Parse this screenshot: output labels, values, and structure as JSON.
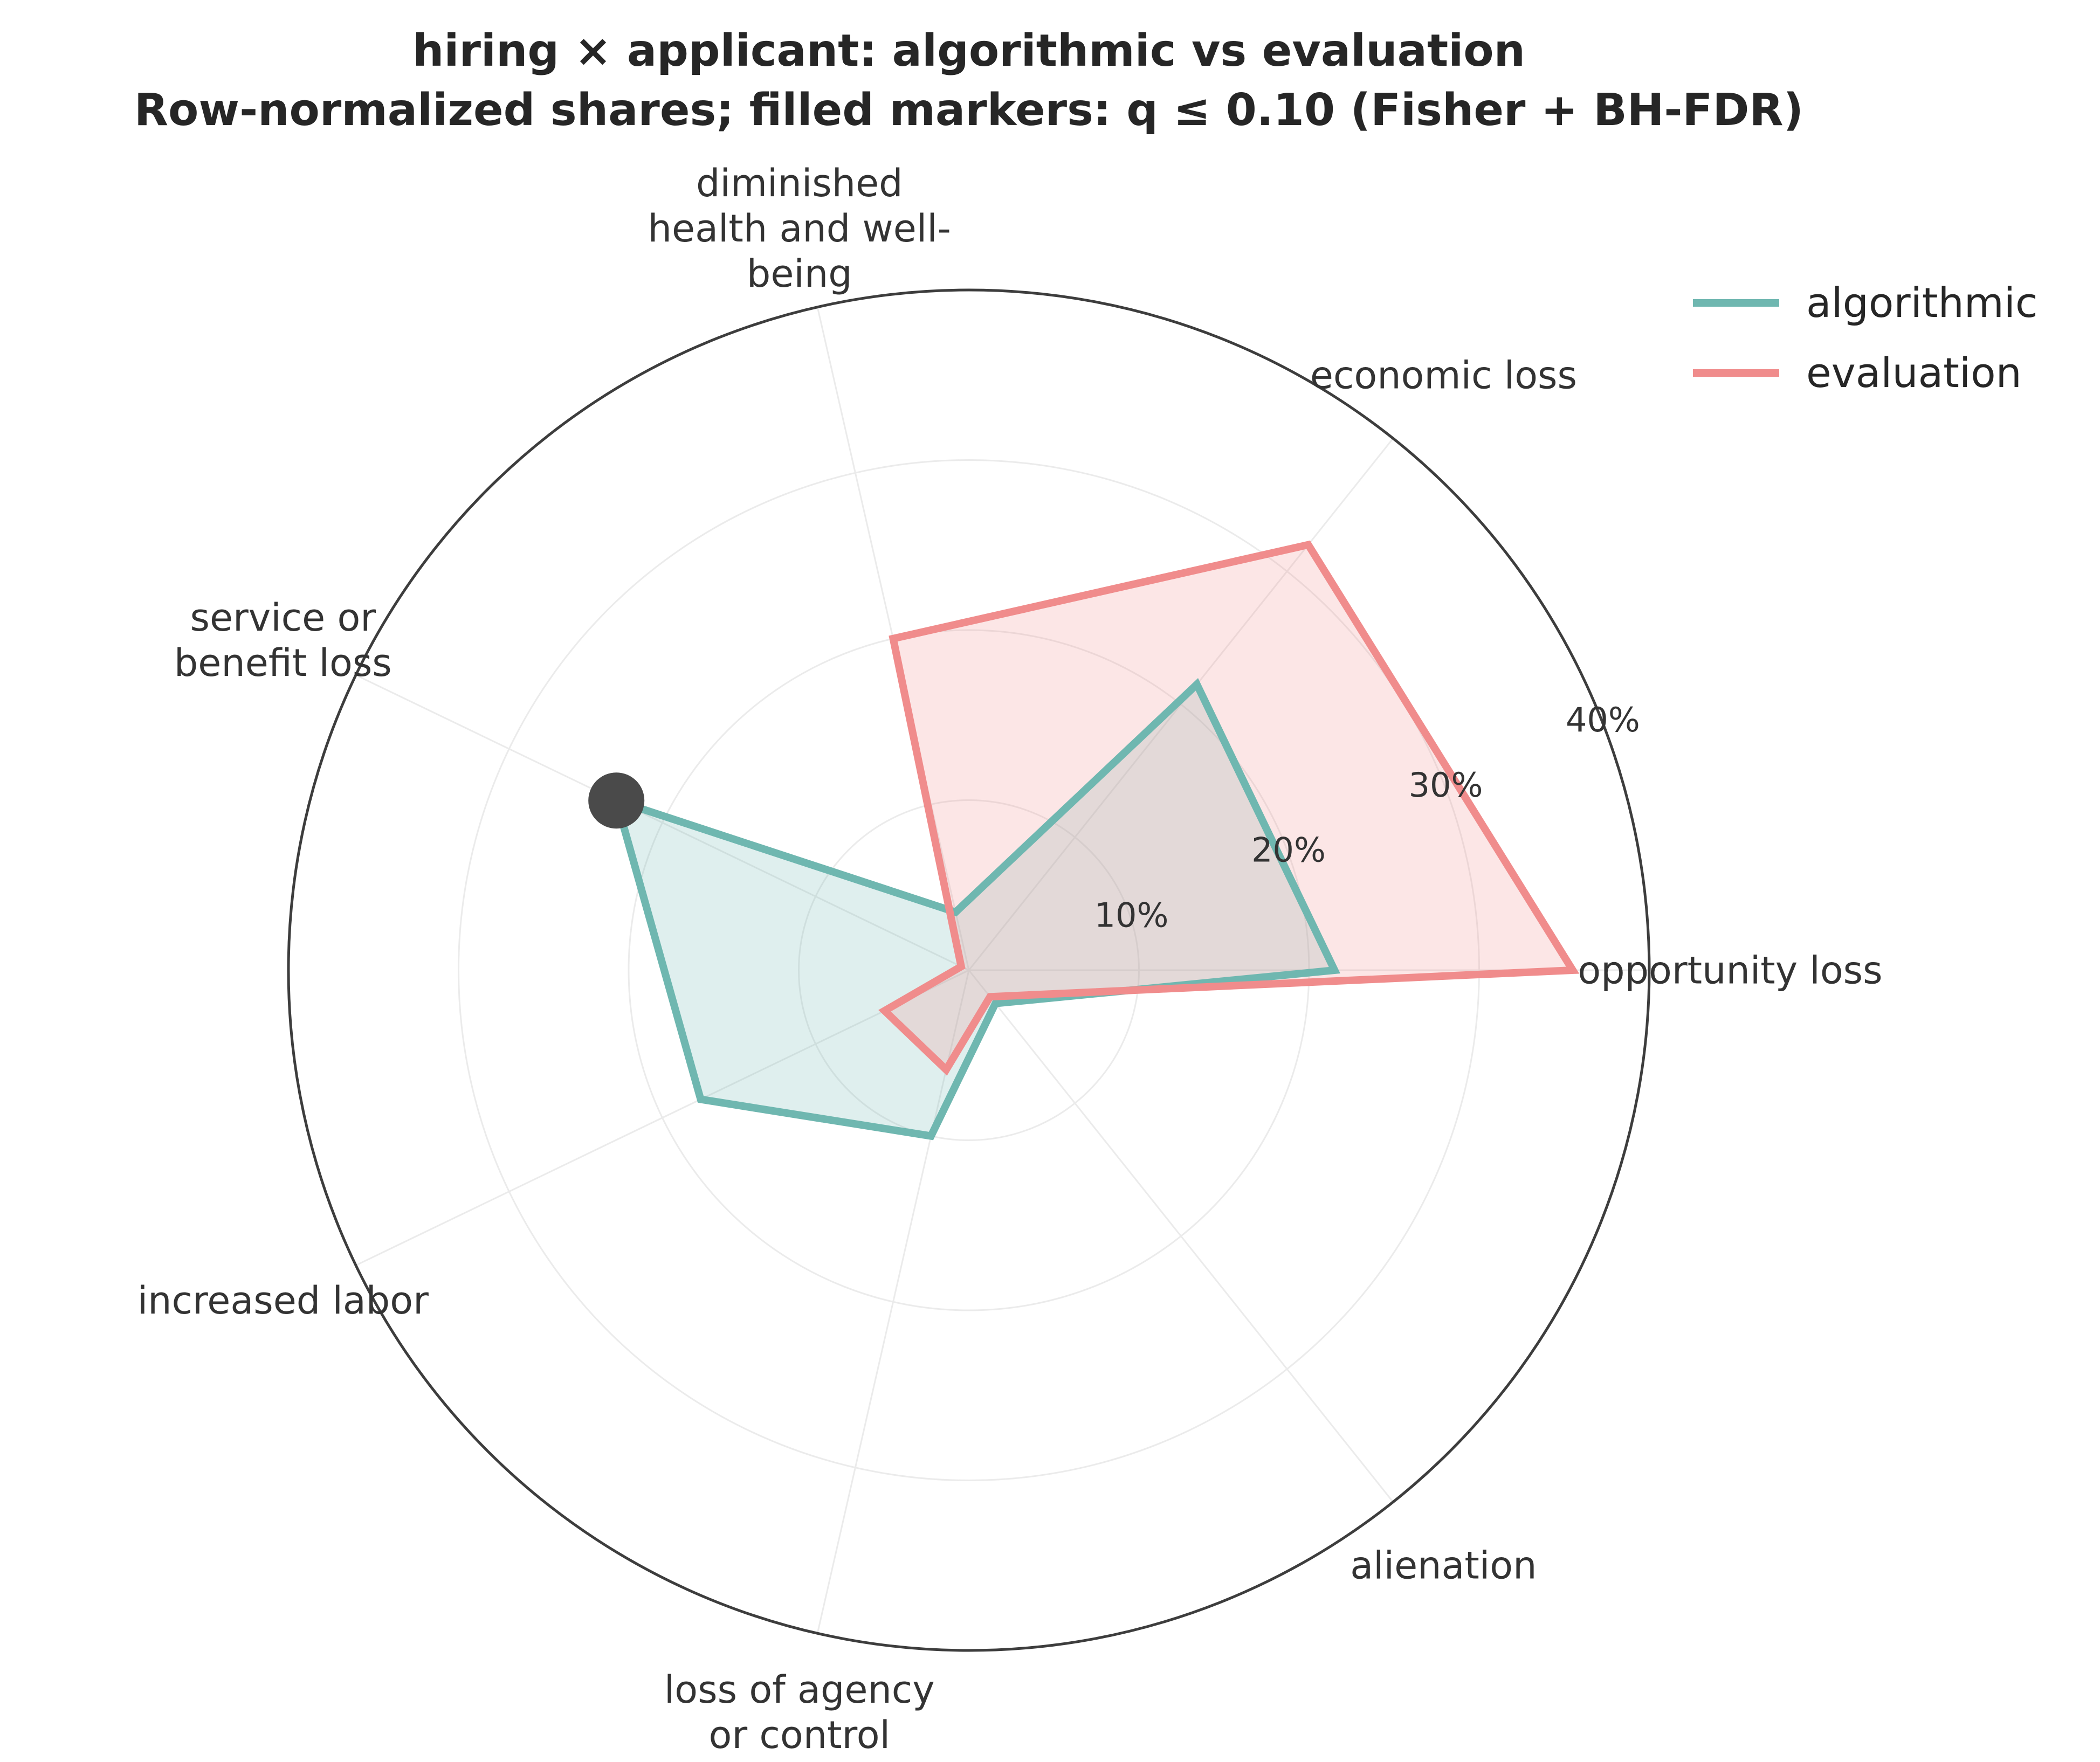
{
  "chart_data": {
    "type": "radar",
    "title": "hiring × applicant: algorithmic vs evaluation",
    "subtitle": "Row-normalized shares; filled markers: q ≤ 0.10 (Fisher + BH-FDR)",
    "axes": [
      {
        "id": "opportunity-loss",
        "label_lines": [
          "opportunity loss"
        ]
      },
      {
        "id": "economic-loss",
        "label_lines": [
          "economic loss"
        ]
      },
      {
        "id": "diminished-health",
        "label_lines": [
          "diminished",
          "health and well-",
          "being"
        ]
      },
      {
        "id": "service-or-benefit-loss",
        "label_lines": [
          "service or",
          "benefit loss"
        ]
      },
      {
        "id": "increased-labor",
        "label_lines": [
          "increased labor"
        ]
      },
      {
        "id": "loss-of-agency",
        "label_lines": [
          "loss of agency",
          "or control"
        ]
      },
      {
        "id": "alienation",
        "label_lines": [
          "alienation"
        ]
      }
    ],
    "r_ticks": [
      10,
      20,
      30,
      40
    ],
    "r_tick_labels": [
      "10%",
      "20%",
      "30%",
      "40%"
    ],
    "r_max": 40,
    "series": [
      {
        "name": "algorithmic",
        "color": "#6fb7b0",
        "values": [
          21.5,
          21.5,
          3.5,
          23.0,
          17.5,
          10.0,
          2.5
        ]
      },
      {
        "name": "evaluation",
        "color": "#f08c8c",
        "values": [
          35.5,
          32.0,
          20.0,
          0.5,
          5.5,
          6.0,
          2.0
        ]
      }
    ],
    "significant_markers": [
      {
        "series": "algorithmic",
        "axis": "service-or-benefit-loss"
      }
    ],
    "legend_position": "top-right"
  }
}
